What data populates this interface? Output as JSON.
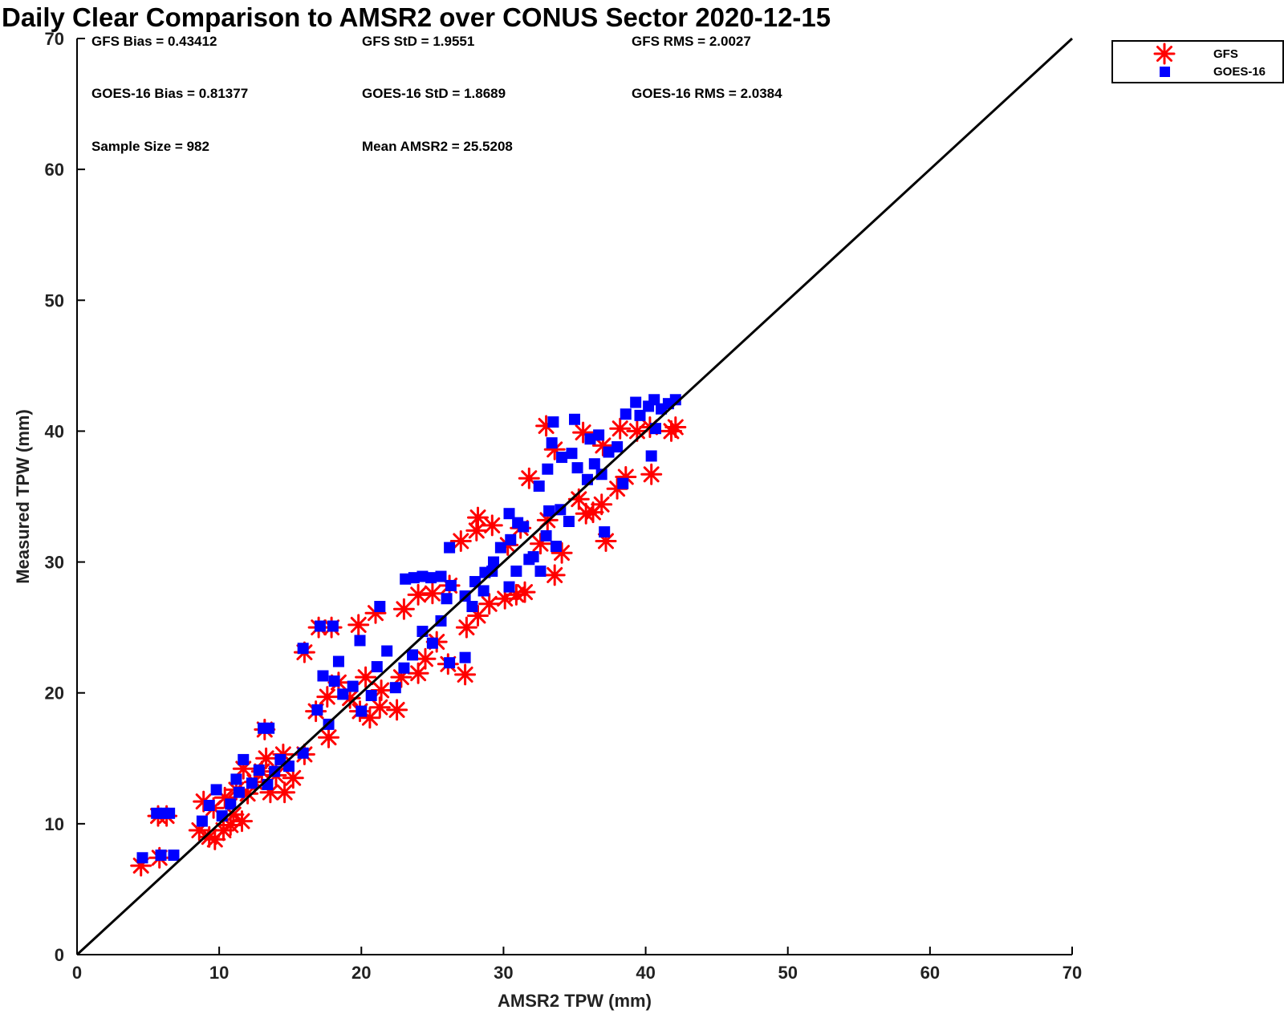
{
  "chart_data": {
    "type": "scatter",
    "title": "Daily Clear Comparison to AMSR2 over CONUS Sector 2020-12-15",
    "xlabel": "AMSR2 TPW (mm)",
    "ylabel": "Measured TPW (mm)",
    "xlim": [
      0,
      70
    ],
    "ylim": [
      0,
      70
    ],
    "xticks": [
      "0",
      "10",
      "20",
      "30",
      "40",
      "50",
      "60",
      "70"
    ],
    "yticks": [
      "0",
      "10",
      "20",
      "30",
      "40",
      "50",
      "60",
      "70"
    ],
    "grid": false,
    "legend_position": "outside top-right",
    "reference_line": "one-to-one",
    "stats": [
      {
        "label": "GFS Bias = 0.43412"
      },
      {
        "label": "GFS StD = 1.9551"
      },
      {
        "label": "GFS RMS = 2.0027"
      },
      {
        "label": "GOES-16 Bias = 0.81377"
      },
      {
        "label": "GOES-16 StD = 1.8689"
      },
      {
        "label": "GOES-16 RMS = 2.0384"
      },
      {
        "label": "Sample Size = 982"
      },
      {
        "label": "Mean AMSR2 = 25.5208"
      }
    ],
    "series": [
      {
        "name": "GFS",
        "color": "#ff0000",
        "marker": "asterisk",
        "points": [
          [
            4.5,
            6.8
          ],
          [
            5.8,
            7.4
          ],
          [
            5.7,
            10.6
          ],
          [
            6.3,
            10.6
          ],
          [
            8.6,
            9.5
          ],
          [
            9.3,
            9.0
          ],
          [
            9.7,
            8.8
          ],
          [
            10.3,
            9.5
          ],
          [
            10.8,
            9.9
          ],
          [
            11.6,
            10.2
          ],
          [
            11.0,
            10.7
          ],
          [
            9.6,
            11.2
          ],
          [
            8.9,
            11.7
          ],
          [
            10.4,
            12.0
          ],
          [
            11.2,
            12.6
          ],
          [
            12.0,
            12.3
          ],
          [
            12.5,
            13.2
          ],
          [
            13.6,
            12.4
          ],
          [
            14.6,
            12.4
          ],
          [
            13.0,
            14.0
          ],
          [
            14.0,
            13.7
          ],
          [
            15.2,
            13.5
          ],
          [
            13.3,
            15.0
          ],
          [
            14.5,
            15.3
          ],
          [
            11.7,
            14.2
          ],
          [
            13.2,
            17.2
          ],
          [
            16.0,
            15.3
          ],
          [
            17.7,
            16.6
          ],
          [
            16.0,
            23.1
          ],
          [
            17.0,
            25.0
          ],
          [
            17.9,
            25.0
          ],
          [
            16.8,
            18.6
          ],
          [
            17.6,
            19.7
          ],
          [
            18.4,
            20.8
          ],
          [
            19.2,
            19.6
          ],
          [
            19.9,
            18.6
          ],
          [
            20.6,
            18.1
          ],
          [
            21.3,
            18.9
          ],
          [
            22.5,
            18.7
          ],
          [
            20.3,
            21.2
          ],
          [
            21.4,
            20.2
          ],
          [
            22.8,
            21.2
          ],
          [
            24.0,
            21.5
          ],
          [
            24.5,
            22.6
          ],
          [
            25.3,
            23.9
          ],
          [
            26.1,
            22.2
          ],
          [
            27.3,
            21.4
          ],
          [
            19.8,
            25.2
          ],
          [
            21.0,
            26.1
          ],
          [
            23.0,
            26.4
          ],
          [
            24.0,
            27.5
          ],
          [
            25.0,
            27.6
          ],
          [
            26.2,
            28.2
          ],
          [
            27.4,
            25.0
          ],
          [
            28.2,
            25.9
          ],
          [
            29.0,
            26.8
          ],
          [
            30.1,
            27.2
          ],
          [
            30.9,
            27.5
          ],
          [
            31.5,
            27.7
          ],
          [
            33.6,
            29.0
          ],
          [
            34.1,
            30.7
          ],
          [
            27.0,
            31.6
          ],
          [
            28.1,
            32.4
          ],
          [
            29.2,
            32.8
          ],
          [
            28.2,
            33.4
          ],
          [
            30.3,
            31.3
          ],
          [
            31.2,
            32.6
          ],
          [
            32.6,
            31.4
          ],
          [
            33.1,
            33.2
          ],
          [
            31.8,
            36.4
          ],
          [
            33.6,
            38.6
          ],
          [
            33.0,
            40.4
          ],
          [
            35.3,
            34.8
          ],
          [
            35.8,
            33.7
          ],
          [
            36.3,
            33.8
          ],
          [
            37.2,
            31.6
          ],
          [
            36.9,
            34.4
          ],
          [
            38.0,
            35.6
          ],
          [
            38.6,
            36.5
          ],
          [
            37.0,
            38.9
          ],
          [
            35.6,
            39.9
          ],
          [
            38.2,
            40.2
          ],
          [
            39.4,
            40.0
          ],
          [
            40.3,
            40.3
          ],
          [
            41.8,
            40.0
          ],
          [
            42.1,
            40.3
          ],
          [
            40.4,
            36.7
          ]
        ]
      },
      {
        "name": "GOES-16",
        "color": "#0000ff",
        "marker": "square",
        "points": [
          [
            4.6,
            7.4
          ],
          [
            5.9,
            7.6
          ],
          [
            6.8,
            7.6
          ],
          [
            5.6,
            10.8
          ],
          [
            6.1,
            10.8
          ],
          [
            6.5,
            10.8
          ],
          [
            8.8,
            10.2
          ],
          [
            9.3,
            11.4
          ],
          [
            9.8,
            12.6
          ],
          [
            10.2,
            10.6
          ],
          [
            10.8,
            11.5
          ],
          [
            11.4,
            12.4
          ],
          [
            11.2,
            13.4
          ],
          [
            11.7,
            14.9
          ],
          [
            12.3,
            13.1
          ],
          [
            12.8,
            14.1
          ],
          [
            13.4,
            13.0
          ],
          [
            13.9,
            14.0
          ],
          [
            14.3,
            14.9
          ],
          [
            14.9,
            14.4
          ],
          [
            13.1,
            17.3
          ],
          [
            13.5,
            17.3
          ],
          [
            15.9,
            15.4
          ],
          [
            15.9,
            23.4
          ],
          [
            17.1,
            25.1
          ],
          [
            18.0,
            25.1
          ],
          [
            18.4,
            22.4
          ],
          [
            17.7,
            17.6
          ],
          [
            16.9,
            18.7
          ],
          [
            17.3,
            21.3
          ],
          [
            18.1,
            20.9
          ],
          [
            18.7,
            19.9
          ],
          [
            19.4,
            20.5
          ],
          [
            20.0,
            18.6
          ],
          [
            19.9,
            24.0
          ],
          [
            20.7,
            19.8
          ],
          [
            21.1,
            22.0
          ],
          [
            21.3,
            26.6
          ],
          [
            21.8,
            23.2
          ],
          [
            22.4,
            20.4
          ],
          [
            23.0,
            21.9
          ],
          [
            23.6,
            22.9
          ],
          [
            24.3,
            24.7
          ],
          [
            25.0,
            23.8
          ],
          [
            25.6,
            25.5
          ],
          [
            26.2,
            22.3
          ],
          [
            27.3,
            22.7
          ],
          [
            23.1,
            28.7
          ],
          [
            23.7,
            28.8
          ],
          [
            24.3,
            28.9
          ],
          [
            24.9,
            28.8
          ],
          [
            25.6,
            28.9
          ],
          [
            26.3,
            28.2
          ],
          [
            26.0,
            27.2
          ],
          [
            27.3,
            27.4
          ],
          [
            28.0,
            28.5
          ],
          [
            28.7,
            29.2
          ],
          [
            29.3,
            30.0
          ],
          [
            29.8,
            31.1
          ],
          [
            26.2,
            31.1
          ],
          [
            27.8,
            26.6
          ],
          [
            28.6,
            27.8
          ],
          [
            29.2,
            29.3
          ],
          [
            30.4,
            28.1
          ],
          [
            30.9,
            29.3
          ],
          [
            31.8,
            30.2
          ],
          [
            30.5,
            31.7
          ],
          [
            31.4,
            32.7
          ],
          [
            32.1,
            30.4
          ],
          [
            32.6,
            29.3
          ],
          [
            33.0,
            32.0
          ],
          [
            33.2,
            33.9
          ],
          [
            30.4,
            33.7
          ],
          [
            31.0,
            33.0
          ],
          [
            32.5,
            35.8
          ],
          [
            33.1,
            37.1
          ],
          [
            33.4,
            39.1
          ],
          [
            33.5,
            40.7
          ],
          [
            34.1,
            38.0
          ],
          [
            34.8,
            38.3
          ],
          [
            35.2,
            37.2
          ],
          [
            35.9,
            36.3
          ],
          [
            36.4,
            37.5
          ],
          [
            36.9,
            36.7
          ],
          [
            37.4,
            38.4
          ],
          [
            38.0,
            38.8
          ],
          [
            38.4,
            36.0
          ],
          [
            36.1,
            39.4
          ],
          [
            35.0,
            40.9
          ],
          [
            36.7,
            39.7
          ],
          [
            37.1,
            32.3
          ],
          [
            38.6,
            41.3
          ],
          [
            39.3,
            42.2
          ],
          [
            39.6,
            41.2
          ],
          [
            40.2,
            41.9
          ],
          [
            40.6,
            42.4
          ],
          [
            41.1,
            41.7
          ],
          [
            41.6,
            42.1
          ],
          [
            42.1,
            42.4
          ],
          [
            40.4,
            38.1
          ],
          [
            40.7,
            40.2
          ],
          [
            34.0,
            34.0
          ],
          [
            34.6,
            33.1
          ],
          [
            33.7,
            31.2
          ]
        ]
      }
    ]
  }
}
